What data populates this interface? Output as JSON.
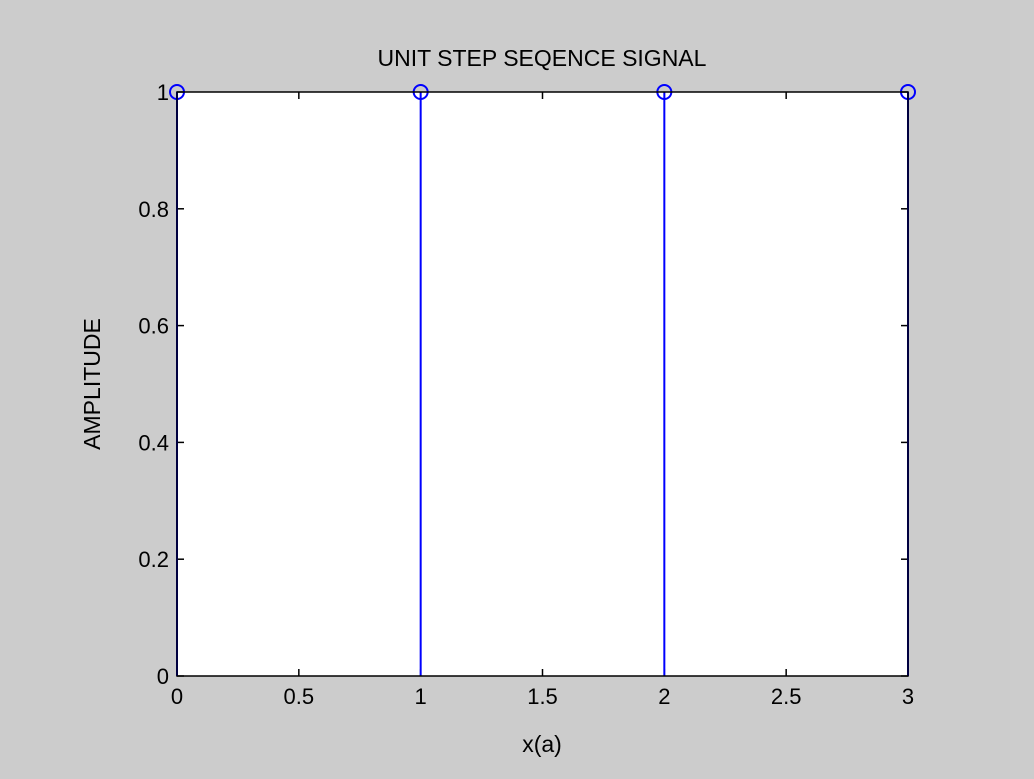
{
  "chart_data": {
    "type": "stem",
    "title": "UNIT STEP SEQENCE SIGNAL",
    "xlabel": "x(a)",
    "ylabel": "AMPLITUDE",
    "xlim": [
      0,
      3
    ],
    "ylim": [
      0,
      1
    ],
    "xticks": [
      0,
      0.5,
      1,
      1.5,
      2,
      2.5,
      3
    ],
    "xtick_labels": [
      "0",
      "0.5",
      "1",
      "1.5",
      "2",
      "2.5",
      "3"
    ],
    "yticks": [
      0,
      0.2,
      0.4,
      0.6,
      0.8,
      1
    ],
    "ytick_labels": [
      "0",
      "0.2",
      "0.4",
      "0.6",
      "0.8",
      "1"
    ],
    "grid": false,
    "series": [
      {
        "x": [
          0,
          1,
          2,
          3
        ],
        "values": [
          1,
          1,
          1,
          1
        ],
        "color": "#0000ff",
        "marker": "circle"
      }
    ]
  },
  "colors": {
    "figure_background": "#cccccc",
    "axes_background": "#ffffff",
    "stem": "#0000ff",
    "axes": "#000000"
  }
}
